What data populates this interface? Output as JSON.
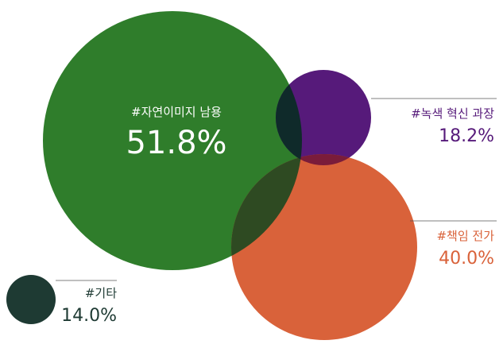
{
  "chart_data": {
    "type": "bubble",
    "title": "",
    "series": [
      {
        "name": "#자연이미지 남용",
        "value": 51.8,
        "value_label": "51.8%",
        "color": "#2f7d2b"
      },
      {
        "name": "#녹색 혁신 과장",
        "value": 18.2,
        "value_label": "18.2%",
        "color": "#561a7a"
      },
      {
        "name": "#책임 전가",
        "value": 40.0,
        "value_label": "40.0%",
        "color": "#d9623a"
      },
      {
        "name": "#기타",
        "value": 14.0,
        "value_label": "14.0%",
        "color": "#1e3a33"
      }
    ],
    "unit": "%"
  },
  "colors": {
    "overlap_green_purple": "#0f2a2a",
    "overlap_green_orange": "#2e4a22",
    "overlap_purple_orange": "#7a1c3a",
    "leader_line": "#555555"
  }
}
